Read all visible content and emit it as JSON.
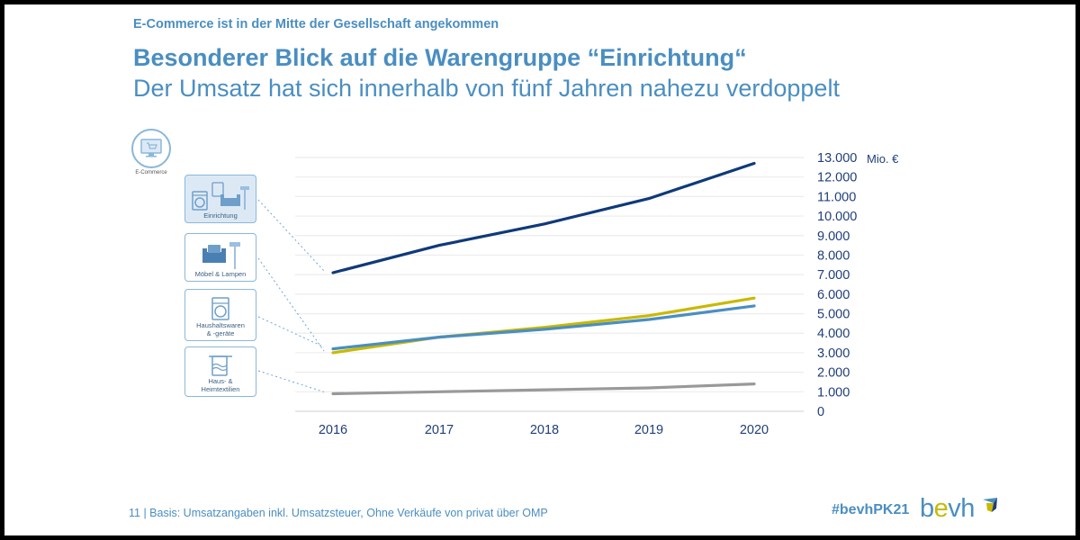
{
  "header": {
    "kicker": "E-Commerce ist in der Mitte der Gesellschaft angekommen",
    "title": "Besonderer Blick auf die Warengruppe “Einrichtung“",
    "subtitle": "Der Umsatz hat sich innerhalb von fünf Jahren nahezu verdoppelt"
  },
  "ecommerce_badge": {
    "label": "E-Commerce",
    "icon": "shopping-cart-monitor-icon"
  },
  "categories": [
    {
      "key": "einrichtung",
      "label": "Einrichtung",
      "icon": "furnishing-icon",
      "highlighted": true
    },
    {
      "key": "moebel",
      "label": "Möbel & Lampen",
      "icon": "armchair-lamp-icon",
      "highlighted": false
    },
    {
      "key": "haushalt",
      "label_line1": "Haushaltswaren",
      "label_line2": "& -geräte",
      "icon": "washing-machine-icon",
      "highlighted": false
    },
    {
      "key": "textil",
      "label_line1": "Haus- &",
      "label_line2": "Heimtextilien",
      "icon": "towel-icon",
      "highlighted": false
    }
  ],
  "chart_data": {
    "type": "line",
    "title": "",
    "xlabel": "",
    "ylabel": "Mio. €",
    "x": [
      "2016",
      "2017",
      "2018",
      "2019",
      "2020"
    ],
    "ylim": [
      0,
      13000
    ],
    "yticks": [
      0,
      1000,
      2000,
      3000,
      4000,
      5000,
      6000,
      7000,
      8000,
      9000,
      10000,
      11000,
      12000,
      13000
    ],
    "ytick_labels": [
      "0",
      "1.000",
      "2.000",
      "3.000",
      "4.000",
      "5.000",
      "6.000",
      "7.000",
      "8.000",
      "9.000",
      "10.000",
      "11.000",
      "12.000",
      "13.000"
    ],
    "grid": true,
    "y_axis_side": "right",
    "legend": "left (icon boxes linked by dotted lines)",
    "series": [
      {
        "name": "Einrichtung",
        "color": "#0f3a7a",
        "values": [
          7100,
          8500,
          9600,
          10900,
          12700
        ]
      },
      {
        "name": "Möbel & Lampen",
        "color": "#c8b900",
        "values": [
          3000,
          3800,
          4300,
          4900,
          5800
        ]
      },
      {
        "name": "Haushaltswaren & -geräte",
        "color": "#4a8ec1",
        "values": [
          3200,
          3800,
          4200,
          4700,
          5400
        ]
      },
      {
        "name": "Haus- & Heimtextilien",
        "color": "#999999",
        "values": [
          900,
          1000,
          1100,
          1200,
          1400
        ]
      }
    ]
  },
  "footer": {
    "note": "11 | Basis: Umsatzangaben inkl. Umsatzsteuer, Ohne Verkäufe von privat über OMP",
    "hashtag": "#bevhPK21",
    "logo_b": "b",
    "logo_e": "e",
    "logo_vh": "vh"
  }
}
